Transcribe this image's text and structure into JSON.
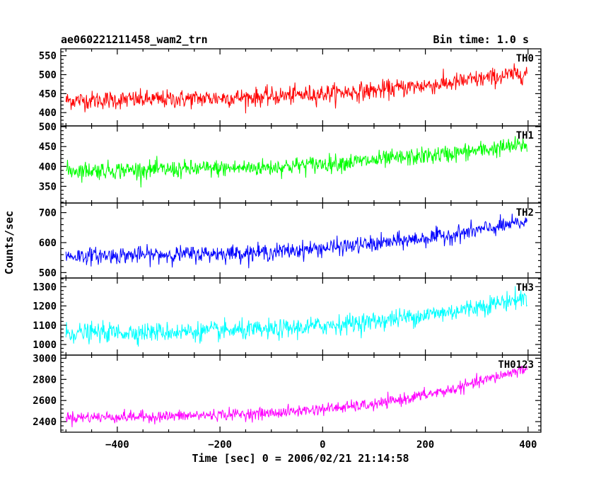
{
  "chart_data": {
    "type": "line",
    "title_left": "ae060221211458_wam2_trn",
    "title_right": "Bin time: 1.0 s",
    "xlabel": "Time [sec] 0 = 2006/02/21 21:14:58",
    "ylabel": "Counts/sec",
    "xlim": [
      -510,
      425
    ],
    "x_ticks": [
      -400,
      -200,
      0,
      200,
      400
    ],
    "x_tick_labels": [
      "−400",
      "−200",
      "0",
      "200",
      "400"
    ],
    "x_step": 1.0,
    "x_start": -500,
    "x_end": 398,
    "panels": [
      {
        "name": "TH0",
        "color": "#ff0000",
        "ylim": [
          365,
          568
        ],
        "y_ticks": [
          400,
          450,
          500,
          550
        ],
        "y_tick_labels": [
          "400",
          "450",
          "500",
          "550"
        ],
        "trend": [
          [
            -500,
            432
          ],
          [
            -300,
            435
          ],
          [
            -100,
            442
          ],
          [
            100,
            458
          ],
          [
            250,
            478
          ],
          [
            400,
            505
          ]
        ],
        "noise": 22
      },
      {
        "name": "TH1",
        "color": "#00ff00",
        "ylim": [
          308,
          502
        ],
        "y_ticks": [
          350,
          400,
          450,
          500
        ],
        "y_tick_labels": [
          "350",
          "400",
          "450",
          "500"
        ],
        "trend": [
          [
            -500,
            390
          ],
          [
            -300,
            392
          ],
          [
            -100,
            398
          ],
          [
            100,
            415
          ],
          [
            250,
            432
          ],
          [
            400,
            455
          ]
        ],
        "noise": 20
      },
      {
        "name": "TH2",
        "color": "#0000ff",
        "ylim": [
          482,
          732
        ],
        "y_ticks": [
          500,
          600,
          700
        ],
        "y_tick_labels": [
          "500",
          "600",
          "700"
        ],
        "trend": [
          [
            -500,
            555
          ],
          [
            -300,
            560
          ],
          [
            -100,
            568
          ],
          [
            100,
            595
          ],
          [
            250,
            625
          ],
          [
            400,
            670
          ]
        ],
        "noise": 25
      },
      {
        "name": "TH3",
        "color": "#00ffff",
        "ylim": [
          945,
          1345
        ],
        "y_ticks": [
          1000,
          1100,
          1200,
          1300
        ],
        "y_tick_labels": [
          "1000",
          "1100",
          "1200",
          "1300"
        ],
        "trend": [
          [
            -500,
            1060
          ],
          [
            -300,
            1065
          ],
          [
            -100,
            1075
          ],
          [
            100,
            1120
          ],
          [
            250,
            1170
          ],
          [
            400,
            1245
          ]
        ],
        "noise": 45
      },
      {
        "name": "TH0123",
        "color": "#ff00ff",
        "ylim": [
          2300,
          3030
        ],
        "y_ticks": [
          2400,
          2600,
          2800,
          3000
        ],
        "y_tick_labels": [
          "2400",
          "2600",
          "2800",
          "3000"
        ],
        "trend": [
          [
            -500,
            2440
          ],
          [
            -300,
            2450
          ],
          [
            -100,
            2480
          ],
          [
            100,
            2560
          ],
          [
            250,
            2700
          ],
          [
            400,
            2910
          ]
        ],
        "noise": 50
      }
    ]
  }
}
